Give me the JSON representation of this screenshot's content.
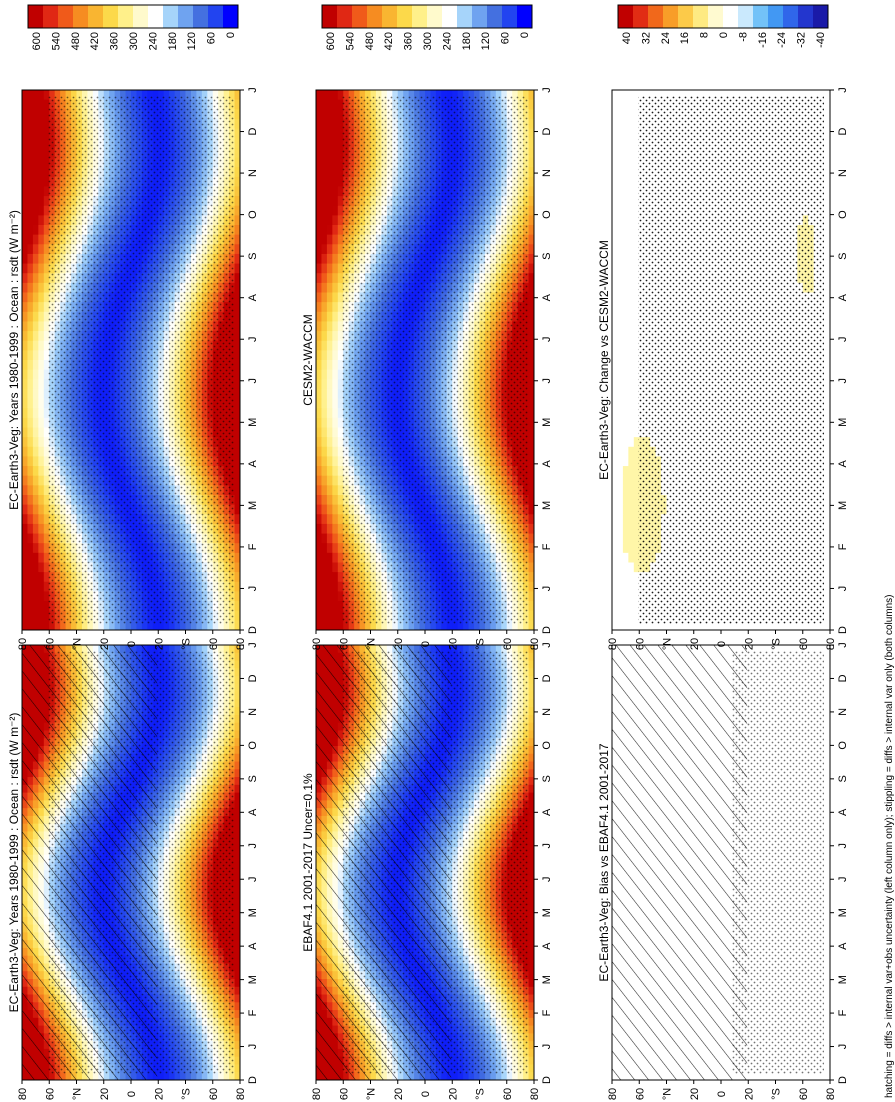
{
  "footnote": "hatching = diffs > internal var+obs uncertainty (left column only); stippling = diffs > internal var only (both columns)",
  "colors": {
    "abs_scale": [
      "#0000ff",
      "#2244f0",
      "#4470e0",
      "#6fa3f0",
      "#a6d4fa",
      "#ffffff",
      "#fffacc",
      "#fff08a",
      "#fcd94a",
      "#f9b531",
      "#f68c21",
      "#f05a1a",
      "#e02814",
      "#c00000"
    ],
    "diff_scale": [
      "#1a1aa8",
      "#2233cc",
      "#2e5ee8",
      "#3a8ff2",
      "#5bb7f6",
      "#a9dcfb",
      "#ffffff",
      "#ffffff",
      "#fff6a8",
      "#fde26a",
      "#fbc03a",
      "#f79322",
      "#f0601a",
      "#e02814",
      "#c00000"
    ]
  },
  "chart_data": [
    {
      "type": "heatmap",
      "panel": "row1-left",
      "title": "EC-Earth3-Veg: Years 1980-1999 : Ocean : rsdt (W m⁻²)",
      "x_ticks": [
        "D",
        "J",
        "F",
        "M",
        "A",
        "M",
        "J",
        "J",
        "A",
        "S",
        "O",
        "N",
        "D",
        "J"
      ],
      "y_ticks": [
        "80",
        "60",
        "°N",
        "20",
        "0",
        "20",
        "°S",
        "60",
        "80"
      ],
      "colorbar": [
        "600",
        "540",
        "480",
        "420",
        "360",
        "300",
        "240",
        "180",
        "120",
        "60",
        "0"
      ],
      "hatching": true,
      "stippling": true
    },
    {
      "type": "heatmap",
      "panel": "row1-right",
      "title": "EC-Earth3-Veg: Years 1980-1999 : Ocean : rsdt (W m⁻²)",
      "x_ticks": [
        "D",
        "J",
        "F",
        "M",
        "A",
        "M",
        "J",
        "J",
        "A",
        "S",
        "O",
        "N",
        "D",
        "J"
      ],
      "y_ticks": [
        "80",
        "60",
        "°N",
        "20",
        "0",
        "20",
        "°S",
        "60",
        "80"
      ],
      "colorbar": [
        "600",
        "540",
        "480",
        "420",
        "360",
        "300",
        "240",
        "180",
        "120",
        "60",
        "0"
      ],
      "hatching": false,
      "stippling": true
    },
    {
      "type": "heatmap",
      "panel": "row2-left",
      "title": "EBAF4.1 2001-2017 Uncer=0.1%",
      "x_ticks": [
        "D",
        "J",
        "F",
        "M",
        "A",
        "M",
        "J",
        "J",
        "A",
        "S",
        "O",
        "N",
        "D",
        "J"
      ],
      "y_ticks": [
        "80",
        "60",
        "°N",
        "20",
        "0",
        "20",
        "°S",
        "60",
        "80"
      ],
      "colorbar": [
        "600",
        "540",
        "480",
        "420",
        "360",
        "300",
        "240",
        "180",
        "120",
        "60",
        "0"
      ],
      "hatching": true,
      "stippling": true
    },
    {
      "type": "heatmap",
      "panel": "row2-right",
      "title": "CESM2-WACCM",
      "x_ticks": [
        "D",
        "J",
        "F",
        "M",
        "A",
        "M",
        "J",
        "J",
        "A",
        "S",
        "O",
        "N",
        "D",
        "J"
      ],
      "y_ticks": [
        "80",
        "60",
        "°N",
        "20",
        "0",
        "20",
        "°S",
        "60",
        "80"
      ],
      "colorbar": [
        "600",
        "540",
        "480",
        "420",
        "360",
        "300",
        "240",
        "180",
        "120",
        "60",
        "0"
      ],
      "hatching": false,
      "stippling": true
    },
    {
      "type": "heatmap",
      "panel": "row3-left",
      "title": "EC-Earth3-Veg: Bias vs EBAF4.1 2001-2017",
      "x_ticks": [
        "D",
        "J",
        "F",
        "M",
        "A",
        "M",
        "J",
        "J",
        "A",
        "S",
        "O",
        "N",
        "D",
        "J"
      ],
      "y_ticks": [
        "80",
        "60",
        "°N",
        "20",
        "0",
        "20",
        "°S",
        "60",
        "80"
      ],
      "colorbar": [
        "40",
        "32",
        "24",
        "16",
        "8",
        "0",
        "-8",
        "-16",
        "-24",
        "-32",
        "-40"
      ],
      "hatching": true,
      "stippling": true
    },
    {
      "type": "heatmap",
      "panel": "row3-right",
      "title": "EC-Earth3-Veg: Change vs CESM2-WACCM",
      "x_ticks": [
        "D",
        "J",
        "F",
        "M",
        "A",
        "M",
        "J",
        "J",
        "A",
        "S",
        "O",
        "N",
        "D",
        "J"
      ],
      "y_ticks": [
        "80",
        "60",
        "°N",
        "20",
        "0",
        "20",
        "°S",
        "60",
        "80"
      ],
      "colorbar": [
        "40",
        "32",
        "24",
        "16",
        "8",
        "0",
        "-8",
        "-16",
        "-24",
        "-32",
        "-40"
      ],
      "hatching": false,
      "stippling": true
    }
  ]
}
